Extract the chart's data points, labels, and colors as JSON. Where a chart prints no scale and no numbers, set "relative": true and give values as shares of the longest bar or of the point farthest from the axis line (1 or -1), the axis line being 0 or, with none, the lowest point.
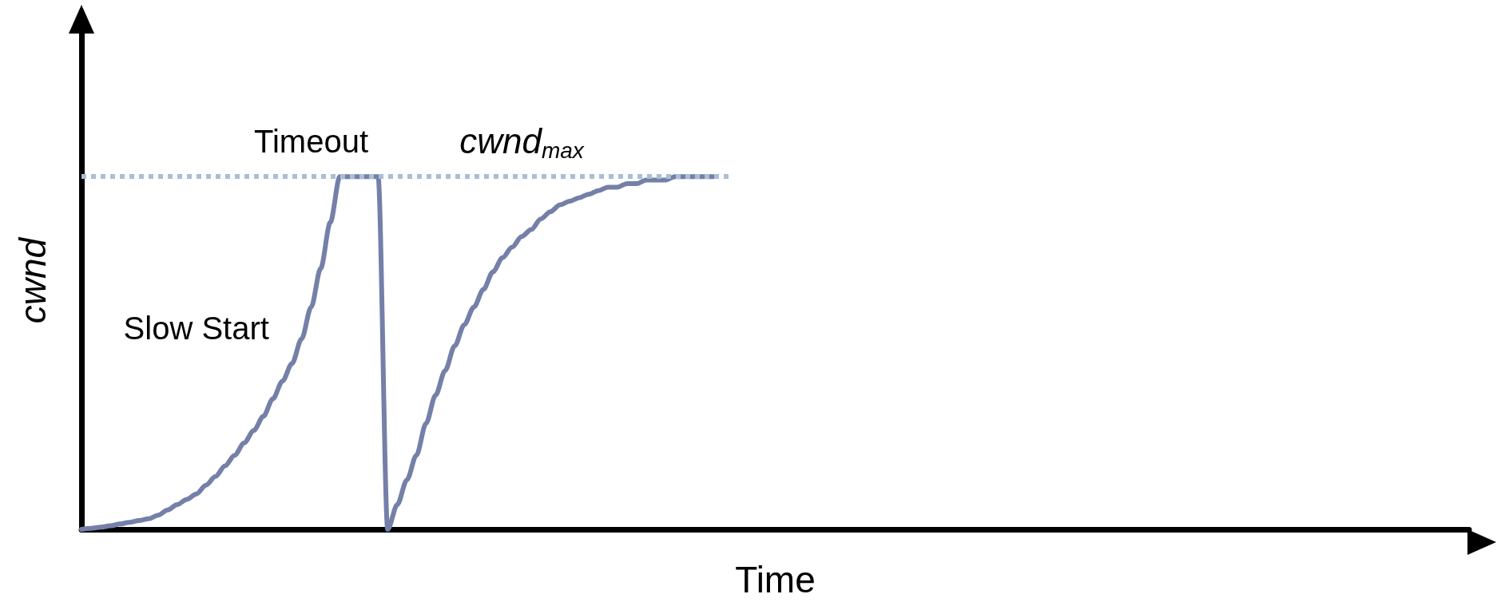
{
  "chart_data": {
    "type": "line",
    "relative": true,
    "xlabel": "Time",
    "ylabel": "cwnd",
    "color": "#7480a8",
    "categories": [
      null,
      null,
      null,
      null,
      null,
      null,
      null,
      null,
      null,
      null,
      null,
      null,
      null,
      null,
      null,
      null,
      null,
      null,
      null,
      null,
      null,
      null,
      null,
      null,
      null,
      null,
      null,
      null,
      null,
      null,
      null,
      null,
      null,
      null,
      null,
      null,
      null,
      null,
      null,
      null,
      null,
      null,
      null,
      null,
      null,
      null,
      null,
      null,
      null,
      null,
      null,
      null,
      null,
      null,
      null,
      null,
      null,
      null,
      null,
      null,
      null,
      null,
      null,
      null,
      null,
      null,
      null,
      null,
      null,
      null,
      null,
      null,
      null,
      null,
      null,
      null,
      null,
      null,
      null,
      null,
      null,
      null,
      null,
      null,
      null,
      null,
      null,
      null,
      null,
      null,
      null,
      null,
      null,
      null,
      null,
      null,
      null,
      null,
      null,
      null,
      null,
      null,
      null,
      null,
      null,
      null,
      null,
      null,
      null,
      null,
      null,
      null,
      null,
      null,
      null,
      null,
      null,
      null,
      null,
      null,
      null,
      null,
      null,
      null,
      null,
      null,
      null,
      null,
      null,
      null,
      null,
      null,
      null,
      null,
      null,
      null,
      null,
      null,
      null,
      null,
      null,
      null,
      null,
      null,
      null,
      null
    ],
    "values": [
      0,
      0.003,
      0.006,
      0.01,
      0.015,
      0.02,
      0.025,
      0.03,
      0.04,
      0.055,
      0.07,
      0.085,
      0.1,
      0.125,
      0.15,
      0.18,
      0.21,
      0.245,
      0.28,
      0.32,
      0.37,
      0.42,
      0.47,
      0.54,
      0.63,
      0.74,
      0.87,
      1,
      1,
      1,
      1,
      1,
      0,
      0.07,
      0.14,
      0.21,
      0.3,
      0.38,
      0.45,
      0.52,
      0.58,
      0.63,
      0.68,
      0.73,
      0.77,
      0.8,
      0.83,
      0.85,
      0.88,
      0.9,
      0.92,
      0.93,
      0.94,
      0.95,
      0.96,
      0.97,
      0.97,
      0.98,
      0.98,
      0.99,
      0.99,
      0.99,
      1,
      1,
      1,
      1,
      1,
      null,
      null,
      null,
      null,
      null,
      null,
      null,
      null,
      null,
      null,
      null,
      null,
      null,
      null,
      null,
      null,
      null,
      null,
      null,
      null,
      null,
      null,
      null,
      null,
      null,
      null,
      null,
      null,
      null,
      null,
      null,
      null,
      null,
      null,
      null,
      null,
      null,
      null,
      null,
      null,
      null,
      null,
      null,
      null,
      null,
      null,
      null,
      null,
      null,
      null,
      null,
      null,
      null,
      null,
      null,
      null,
      null,
      null,
      null,
      null,
      null,
      null,
      null,
      null,
      null,
      null,
      null,
      null,
      null,
      null,
      null,
      null,
      null,
      null,
      null,
      null,
      null,
      null,
      null
    ],
    "ref_lines": [
      {
        "axis": "y",
        "value": 1,
        "label": "cwnd$_{max}$",
        "color": "#a9bfd4",
        "line_style": "dotted"
      }
    ],
    "annotations": [
      "Timeout",
      "Slow Start"
    ],
    "marker": "none",
    "line_style": "solid",
    "grid": false
  }
}
